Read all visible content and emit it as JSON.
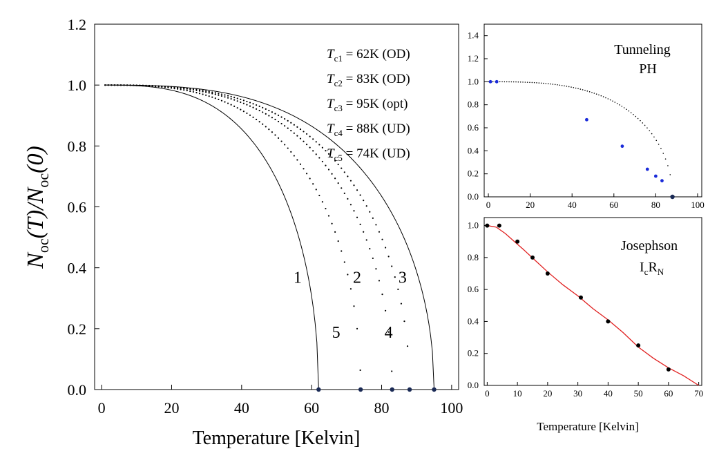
{
  "chart_data": [
    {
      "type": "line",
      "id": "main",
      "xlabel": "Temperature [Kelvin]",
      "ylabel_parts": {
        "N": "N",
        "oc": "oc",
        "T": "(T)/",
        "N2": "N",
        "oc2": "oc",
        "zero": "(0)"
      },
      "xlim": [
        -2,
        102
      ],
      "ylim": [
        0,
        1.2
      ],
      "xticks": [
        0,
        20,
        40,
        60,
        80,
        100
      ],
      "yticks": [
        0.0,
        0.2,
        0.4,
        0.6,
        0.8,
        1.0,
        1.2
      ],
      "ytick_labels": [
        "0.0",
        "0.2",
        "0.4",
        "0.6",
        "0.8",
        "1.0",
        "1.2"
      ],
      "series": [
        {
          "name": "1",
          "tc": 62,
          "style": "solid",
          "label_at": [
            56,
            0.35
          ]
        },
        {
          "name": "2",
          "tc": 83,
          "style": "dotted",
          "label_at": [
            73,
            0.35
          ]
        },
        {
          "name": "3",
          "tc": 95,
          "style": "solid",
          "label_at": [
            86,
            0.35
          ]
        },
        {
          "name": "4",
          "tc": 88,
          "style": "dotted",
          "label_at": [
            82,
            0.17
          ]
        },
        {
          "name": "5",
          "tc": 74,
          "style": "dotted",
          "label_at": [
            67,
            0.17
          ]
        }
      ],
      "tc_markers": [
        62,
        74,
        83,
        88,
        95
      ],
      "annotations": [
        {
          "T": "T",
          "sub": "c1",
          "text": " = 62K (OD)"
        },
        {
          "T": "T",
          "sub": "c2",
          "text": " = 83K (OD)"
        },
        {
          "T": "T",
          "sub": "c3",
          "text": " = 95K (opt)"
        },
        {
          "T": "T",
          "sub": "c4",
          "text": " = 88K (UD)"
        },
        {
          "T": "T",
          "sub": "c5",
          "text": " = 74K (UD)"
        }
      ]
    },
    {
      "type": "scatter",
      "id": "tunneling",
      "title_lines": [
        "Tunneling",
        "PH"
      ],
      "xlim": [
        -2,
        102
      ],
      "ylim": [
        0,
        1.5
      ],
      "xticks": [
        0,
        20,
        40,
        60,
        80,
        100
      ],
      "yticks": [
        0.0,
        0.2,
        0.4,
        0.6,
        0.8,
        1.0,
        1.2,
        1.4
      ],
      "ytick_labels": [
        "0.0",
        "0.2",
        "0.4",
        "0.6",
        "0.8",
        "1.0",
        "1.2",
        "1.4"
      ],
      "fit_tc": 88,
      "points": [
        [
          1,
          1.0
        ],
        [
          4,
          1.0
        ],
        [
          47,
          0.67
        ],
        [
          64,
          0.44
        ],
        [
          76,
          0.24
        ],
        [
          80,
          0.18
        ],
        [
          83,
          0.14
        ]
      ],
      "point_color": "#1a2bd9",
      "end_marker": [
        88,
        0.0
      ]
    },
    {
      "type": "scatter",
      "id": "josephson",
      "title": "Josephson",
      "title2_parts": {
        "I": "I",
        "c": "c",
        "R": "R",
        "N": "N"
      },
      "xlim": [
        -1,
        71
      ],
      "ylim": [
        0,
        1.05
      ],
      "xticks": [
        0,
        10,
        20,
        30,
        40,
        50,
        60,
        70
      ],
      "yticks": [
        0.0,
        0.2,
        0.4,
        0.6,
        0.8,
        1.0
      ],
      "ytick_labels": [
        "0.0",
        "0.2",
        "0.4",
        "0.6",
        "0.8",
        "1.0"
      ],
      "points": [
        [
          0,
          1.0
        ],
        [
          4,
          1.0
        ],
        [
          10,
          0.9
        ],
        [
          15,
          0.8
        ],
        [
          20,
          0.7
        ],
        [
          31,
          0.55
        ],
        [
          40,
          0.4
        ],
        [
          50,
          0.25
        ],
        [
          60,
          0.1
        ]
      ],
      "fit": [
        [
          0,
          1.0
        ],
        [
          3,
          0.99
        ],
        [
          6,
          0.95
        ],
        [
          9,
          0.9
        ],
        [
          12,
          0.85
        ],
        [
          16,
          0.78
        ],
        [
          20,
          0.71
        ],
        [
          25,
          0.63
        ],
        [
          30,
          0.56
        ],
        [
          35,
          0.48
        ],
        [
          40,
          0.41
        ],
        [
          45,
          0.33
        ],
        [
          50,
          0.24
        ],
        [
          55,
          0.17
        ],
        [
          60,
          0.11
        ],
        [
          65,
          0.06
        ],
        [
          70,
          0.0
        ]
      ],
      "fit_color": "#e02020",
      "xlabel": "Temperature [Kelvin]"
    }
  ]
}
